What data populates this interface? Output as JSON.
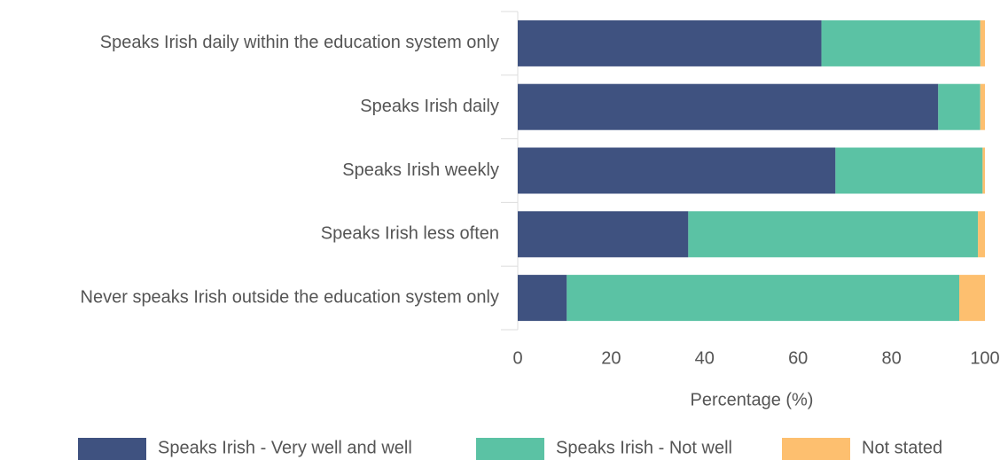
{
  "chart_data": {
    "type": "bar",
    "orientation": "horizontal",
    "stacked": true,
    "categories": [
      "Speaks Irish daily within the education system only",
      "Speaks Irish daily",
      "Speaks Irish weekly",
      "Speaks Irish less often",
      "Never speaks Irish outside the education system only"
    ],
    "series": [
      {
        "name": "Speaks Irish - Very well and well",
        "color": "#3f5280",
        "values": [
          65,
          90,
          68,
          36.5,
          10.5
        ]
      },
      {
        "name": "Speaks Irish - Not well",
        "color": "#5bc2a4",
        "values": [
          34,
          9,
          31.5,
          62,
          84
        ]
      },
      {
        "name": "Not stated",
        "color": "#fdbf6f",
        "values": [
          1,
          1,
          0.5,
          1.5,
          5.5
        ]
      }
    ],
    "xlabel": "Percentage (%)",
    "xlim": [
      0,
      100
    ],
    "xticks": [
      0,
      20,
      40,
      60,
      80,
      100
    ],
    "legend": "bottom"
  }
}
